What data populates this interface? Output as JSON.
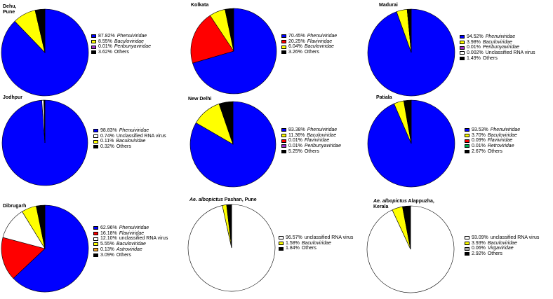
{
  "colors": {
    "Phenuiviridae": "#0000ff",
    "Baculoviridae": "#ffff00",
    "Flaviviridae": "#ff0000",
    "Peribunyaviridae": "#9b30c8",
    "Unclassified RNA virus": "#ffffff",
    "unclassified RNA virus": "#ffffff",
    "Others": "#000000",
    "Retroviridae": "#00b050",
    "Astroviridae": "#f5a623",
    "Virgaviridae": "#a6a6a6"
  },
  "chart_data": [
    {
      "type": "pie",
      "title": "Dehu,\nPune",
      "slices": [
        {
          "label": "Phenuiviridae",
          "percent_text": "87.82%",
          "value": 87.82,
          "italic": true
        },
        {
          "label": "Baculoviridae",
          "percent_text": "8.55%",
          "value": 8.55,
          "italic": true
        },
        {
          "label": "Peribunyaviridae",
          "percent_text": "0.01%",
          "value": 0.01,
          "italic": true
        },
        {
          "label": "Others",
          "percent_text": "3.62%",
          "value": 3.62,
          "italic": false
        }
      ]
    },
    {
      "type": "pie",
      "title": "Kolkata",
      "slices": [
        {
          "label": "Phenuiviridae",
          "percent_text": "70.45%",
          "value": 70.45,
          "italic": true
        },
        {
          "label": "Flaviviridae",
          "percent_text": "20.25%",
          "value": 20.25,
          "italic": true
        },
        {
          "label": "Baculoviridae",
          "percent_text": "6.04%",
          "value": 6.04,
          "italic": true
        },
        {
          "label": "Others",
          "percent_text": "3.26%",
          "value": 3.26,
          "italic": false
        }
      ]
    },
    {
      "type": "pie",
      "title": "Madurai",
      "slices": [
        {
          "label": "Phenuiviridae",
          "percent_text": "94.52%",
          "value": 94.52,
          "italic": true
        },
        {
          "label": "Baculoviridae",
          "percent_text": "3.98%",
          "value": 3.98,
          "italic": true
        },
        {
          "label": "Peribunyaviridae",
          "percent_text": "0.01%",
          "value": 0.01,
          "italic": true
        },
        {
          "label": "Unclassified RNA virus",
          "percent_text": "0.002%",
          "value": 0.002,
          "italic": false
        },
        {
          "label": "Others",
          "percent_text": "1.49%",
          "value": 1.49,
          "italic": false
        }
      ]
    },
    {
      "type": "pie",
      "title": "Jodhpur",
      "slices": [
        {
          "label": "Phenuiviridae",
          "percent_text": "98.83%",
          "value": 98.83,
          "italic": true
        },
        {
          "label": "Unclassified RNA virus",
          "percent_text": "0.74%",
          "value": 0.74,
          "italic": false
        },
        {
          "label": "Baculoviridae",
          "percent_text": "0.11%",
          "value": 0.11,
          "italic": true
        },
        {
          "label": "Others",
          "percent_text": "0.32%",
          "value": 0.32,
          "italic": false
        }
      ]
    },
    {
      "type": "pie",
      "title": "New Delhi",
      "slices": [
        {
          "label": "Phenuiviridae",
          "percent_text": "83.38%",
          "value": 83.38,
          "italic": true
        },
        {
          "label": "Baculoviridae",
          "percent_text": "11.36%",
          "value": 11.36,
          "italic": true
        },
        {
          "label": "Flaviviridae",
          "percent_text": "0.01%",
          "value": 0.01,
          "italic": true
        },
        {
          "label": "Peribunyaviridae",
          "percent_text": "0.01%",
          "value": 0.01,
          "italic": true
        },
        {
          "label": "Others",
          "percent_text": "5.25%",
          "value": 5.25,
          "italic": false
        }
      ]
    },
    {
      "type": "pie",
      "title": "Patiala",
      "slices": [
        {
          "label": "Phenuiviridae",
          "percent_text": "93.53%",
          "value": 93.53,
          "italic": true
        },
        {
          "label": "Baculoviridae",
          "percent_text": "3.70%",
          "value": 3.7,
          "italic": true
        },
        {
          "label": "Flaviviridae",
          "percent_text": "0.09%",
          "value": 0.09,
          "italic": true
        },
        {
          "label": "Retroviridae",
          "percent_text": "0.01%",
          "value": 0.01,
          "italic": true
        },
        {
          "label": "Others",
          "percent_text": "2.67%",
          "value": 2.67,
          "italic": false
        }
      ]
    },
    {
      "type": "pie",
      "title": "Dibrugarh",
      "slices": [
        {
          "label": "Phenuiviridae",
          "percent_text": "62.96%",
          "value": 62.96,
          "italic": true
        },
        {
          "label": "Flaviviridae",
          "percent_text": "16.18%",
          "value": 16.18,
          "italic": true
        },
        {
          "label": "unclassified RNA virus",
          "percent_text": "12.10%",
          "value": 12.1,
          "italic": false
        },
        {
          "label": "Baculoviridae",
          "percent_text": "5.55%",
          "value": 5.55,
          "italic": true
        },
        {
          "label": "Astroviridae",
          "percent_text": "0.13%",
          "value": 0.13,
          "italic": true
        },
        {
          "label": "Others",
          "percent_text": "3.09%",
          "value": 3.09,
          "italic": false
        }
      ]
    },
    {
      "type": "pie",
      "title_italic": "Ae. albopictus",
      "title": " Pashan, Pune",
      "slices": [
        {
          "label": "unclassified RNA virus",
          "percent_text": "96.57%",
          "value": 96.57,
          "italic": false
        },
        {
          "label": "Baculoviridae",
          "percent_text": "1.58%",
          "value": 1.58,
          "italic": true
        },
        {
          "label": "Others",
          "percent_text": "1.84%",
          "value": 1.84,
          "italic": false
        }
      ]
    },
    {
      "type": "pie",
      "title_italic": "Ae. albopictus",
      "title": " Alappuzha,\nKerala",
      "slices": [
        {
          "label": "unclassified RNA virus",
          "percent_text": "93.09%",
          "value": 93.09,
          "italic": false
        },
        {
          "label": "Baculoviridae",
          "percent_text": "3.93%",
          "value": 3.93,
          "italic": true
        },
        {
          "label": "Virgaviridae",
          "percent_text": "0.06%",
          "value": 0.06,
          "italic": true
        },
        {
          "label": "Others",
          "percent_text": "2.92%",
          "value": 2.92,
          "italic": false
        }
      ]
    }
  ]
}
